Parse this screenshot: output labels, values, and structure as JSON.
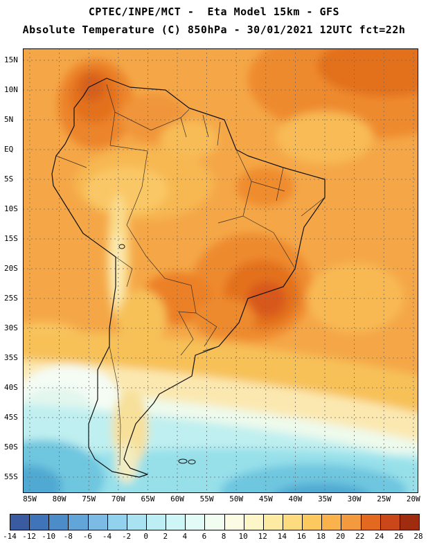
{
  "title": {
    "line1": "CPTEC/INPE/MCT -  Eta Model 15km - GFS",
    "line2": "Absolute Temperature (C) 850hPa - 30/01/2021 12UTC fct=22h"
  },
  "map": {
    "lat_labels": [
      "15N",
      "10N",
      "5N",
      "EQ",
      "5S",
      "10S",
      "15S",
      "20S",
      "25S",
      "30S",
      "35S",
      "40S",
      "45S",
      "50S",
      "55S"
    ],
    "lon_labels": [
      "85W",
      "80W",
      "75W",
      "70W",
      "65W",
      "60W",
      "55W",
      "50W",
      "45W",
      "40W",
      "35W",
      "30W",
      "25W",
      "20W"
    ]
  },
  "colorbar": {
    "unit": "C",
    "tick_labels": [
      "-14",
      "-12",
      "-10",
      "-8",
      "-6",
      "-4",
      "-2",
      "0",
      "2",
      "4",
      "6",
      "8",
      "10",
      "12",
      "14",
      "16",
      "18",
      "20",
      "22",
      "24",
      "26",
      "28"
    ],
    "cell_colors": [
      "#3A5BA0",
      "#3F74B8",
      "#4C8CC8",
      "#62A5D8",
      "#7CBCE4",
      "#93D2EC",
      "#A9E2F0",
      "#BCEEF4",
      "#CFF6F6",
      "#E2FBF6",
      "#F2FDF2",
      "#FCFCE4",
      "#FDF6C8",
      "#FDEBA4",
      "#FDDC80",
      "#FCC95F",
      "#F9B24C",
      "#F29A3D",
      "#E2691F",
      "#C94719",
      "#A02C10"
    ]
  },
  "chart_data": {
    "type": "heatmap",
    "title": "Absolute Temperature (C) 850hPa - 30/01/2021 12UTC fct=22h",
    "region": {
      "lat_ticks": [
        "15N",
        "10N",
        "5N",
        "EQ",
        "5S",
        "10S",
        "15S",
        "20S",
        "25S",
        "30S",
        "35S",
        "40S",
        "45S",
        "50S",
        "55S"
      ],
      "lon_ticks": [
        "85W",
        "80W",
        "75W",
        "70W",
        "65W",
        "60W",
        "55W",
        "50W",
        "45W",
        "40W",
        "35W",
        "30W",
        "25W",
        "20W"
      ]
    },
    "scale_values": [
      -14,
      -12,
      -10,
      -8,
      -6,
      -4,
      -2,
      0,
      2,
      4,
      6,
      8,
      10,
      12,
      14,
      16,
      18,
      20,
      22,
      24,
      26,
      28
    ],
    "legend_position": "bottom",
    "grid": "dashed"
  }
}
